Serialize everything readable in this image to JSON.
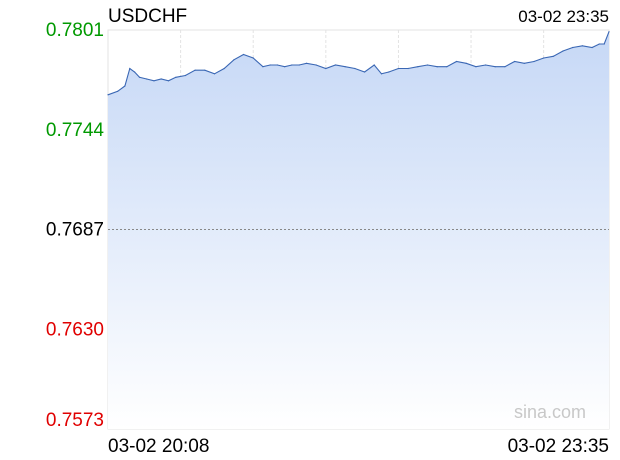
{
  "chart_data": {
    "type": "area",
    "title": "USDCHF",
    "timestamp": "03-02 23:35",
    "watermark": "sina.com",
    "baseline": 0.7687,
    "ylim": [
      0.7573,
      0.7801
    ],
    "yticks": [
      0.7801,
      0.7744,
      0.7687,
      0.763,
      0.7573
    ],
    "ytick_labels": [
      "0.7801",
      "0.7744",
      "0.7687",
      "0.7630",
      "0.7573"
    ],
    "xlim": [
      "20:08",
      "23:35"
    ],
    "xtick_labels": [
      "03-02 20:08",
      "03-02 23:35"
    ],
    "colors": {
      "line": "#3a67b4",
      "fill_top": "#c6d8f6",
      "fill_bottom": "#ffffff",
      "up": "#009900",
      "down": "#e00000",
      "neutral": "#000000",
      "grid": "#e3e3e3",
      "watermark": "#c8c8c8"
    },
    "series": [
      {
        "x": [
          "20:08",
          "20:12",
          "20:15",
          "20:17",
          "20:19",
          "20:21",
          "20:24",
          "20:27",
          "20:30",
          "20:33",
          "20:36",
          "20:40",
          "20:44",
          "20:48",
          "20:52",
          "20:56",
          "21:00",
          "21:04",
          "21:08",
          "21:12",
          "21:15",
          "21:18",
          "21:21",
          "21:24",
          "21:27",
          "21:30",
          "21:34",
          "21:38",
          "21:42",
          "21:46",
          "21:50",
          "21:54",
          "21:58",
          "22:01",
          "22:04",
          "22:08",
          "22:12",
          "22:16",
          "22:20",
          "22:24",
          "22:28",
          "22:32",
          "22:36",
          "22:40",
          "22:44",
          "22:48",
          "22:52",
          "22:56",
          "23:00",
          "23:04",
          "23:08",
          "23:12",
          "23:16",
          "23:20",
          "23:24",
          "23:28",
          "23:31",
          "23:33",
          "23:35"
        ],
        "y": [
          0.7764,
          0.7766,
          0.7769,
          0.7779,
          0.7777,
          0.7774,
          0.7773,
          0.7772,
          0.7773,
          0.7772,
          0.7774,
          0.7775,
          0.7778,
          0.7778,
          0.7776,
          0.7779,
          0.7784,
          0.7787,
          0.7785,
          0.778,
          0.7781,
          0.7781,
          0.778,
          0.7781,
          0.7781,
          0.7782,
          0.7781,
          0.7779,
          0.7781,
          0.778,
          0.7779,
          0.7777,
          0.7781,
          0.7776,
          0.7777,
          0.7779,
          0.7779,
          0.778,
          0.7781,
          0.778,
          0.778,
          0.7783,
          0.7782,
          0.778,
          0.7781,
          0.778,
          0.778,
          0.7783,
          0.7782,
          0.7783,
          0.7785,
          0.7786,
          0.7789,
          0.7791,
          0.7792,
          0.7791,
          0.7793,
          0.7793,
          0.78
        ]
      }
    ]
  }
}
